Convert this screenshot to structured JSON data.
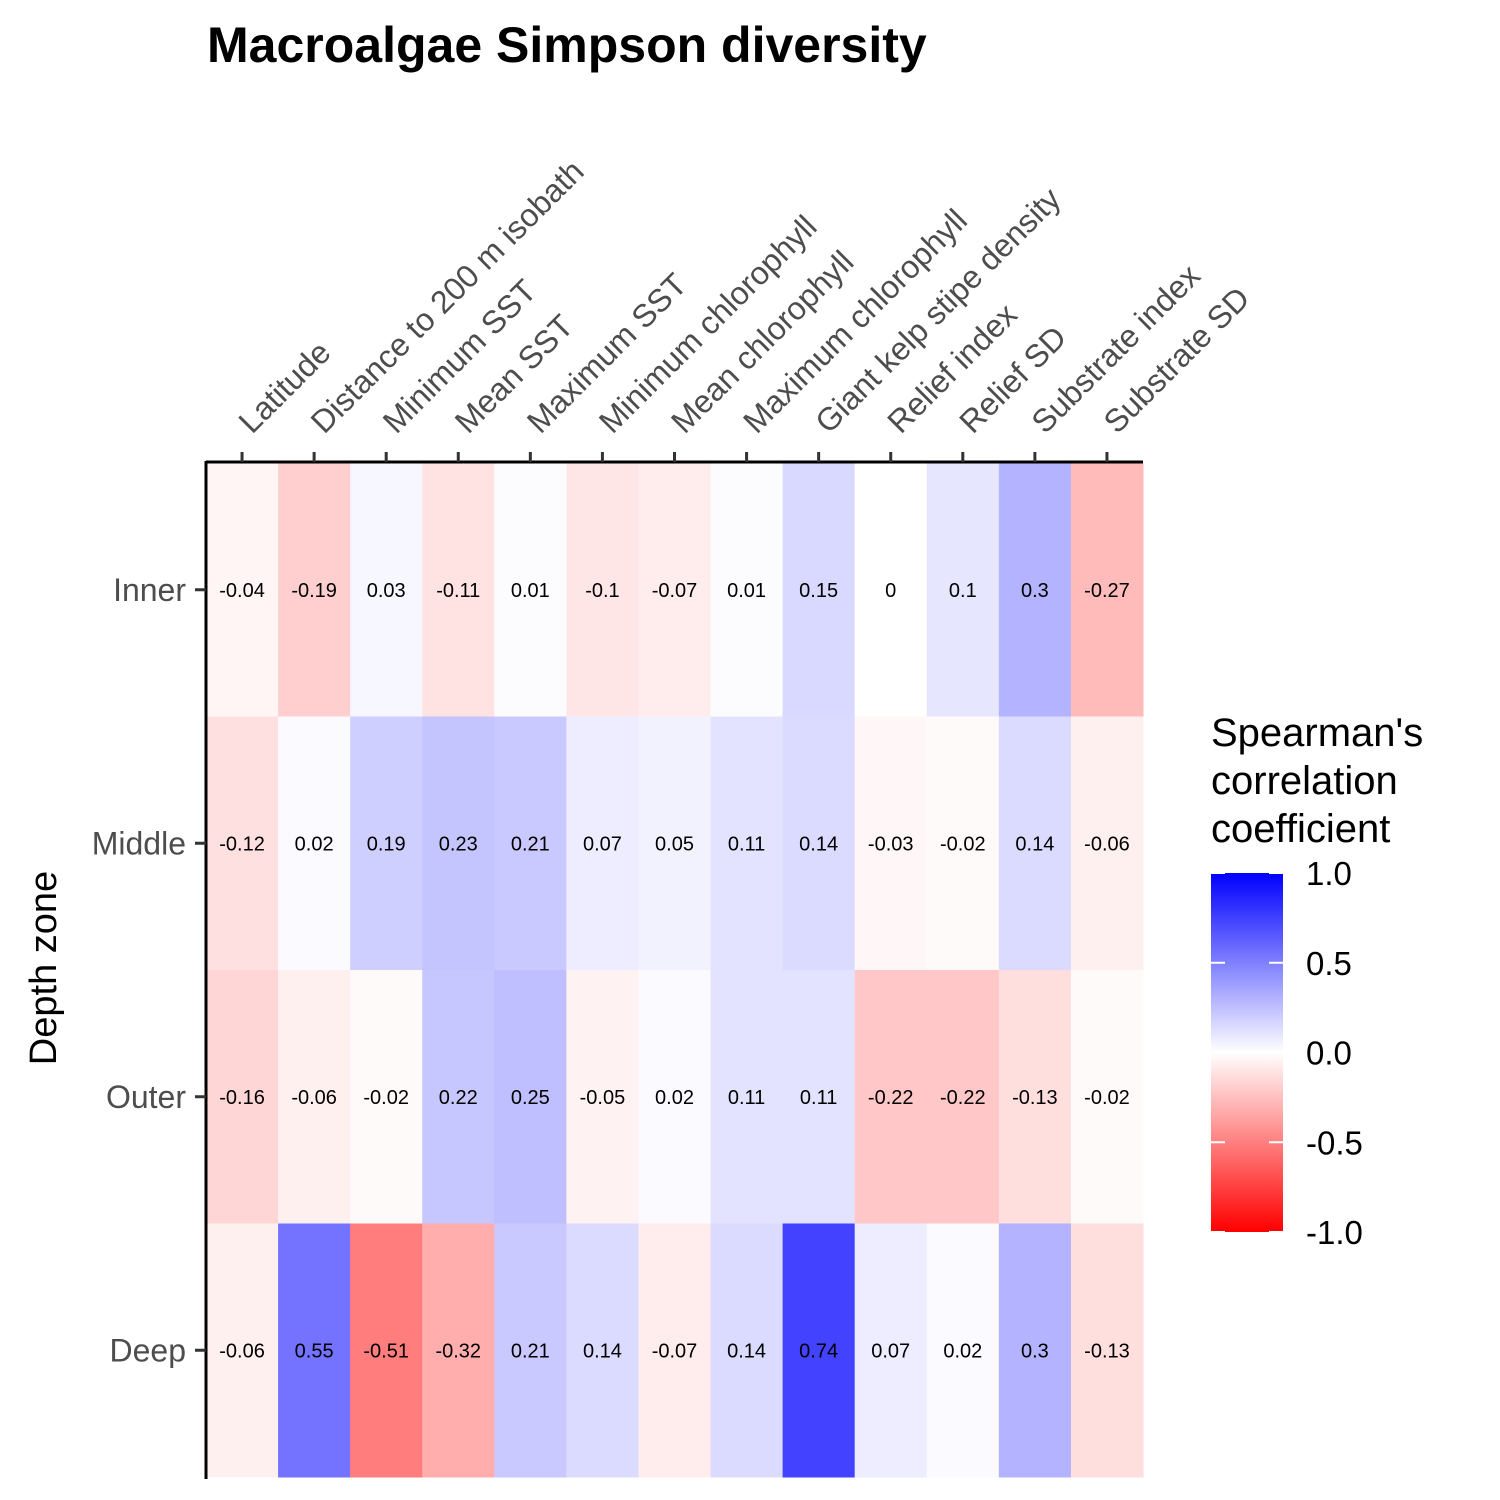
{
  "chart_data": {
    "type": "heatmap",
    "title": "Macroalgae  Simpson diversity",
    "ylabel": "Depth zone",
    "xlabel": "",
    "columns": [
      "Latitude",
      "Distance to 200 m isobath",
      "Minimum SST",
      "Mean SST",
      "Maximum SST",
      "Minimum chlorophyll",
      "Mean chlorophyll",
      "Maximum chlorophyll",
      "Giant kelp stipe density",
      "Relief index",
      "Relief SD",
      "Substrate index",
      "Substrate SD"
    ],
    "rows": [
      "Inner",
      "Middle",
      "Outer",
      "Deep"
    ],
    "values": [
      [
        -0.04,
        -0.19,
        0.03,
        -0.11,
        0.01,
        -0.1,
        -0.07,
        0.01,
        0.15,
        0,
        0.1,
        0.3,
        -0.27
      ],
      [
        -0.12,
        0.02,
        0.19,
        0.23,
        0.21,
        0.07,
        0.05,
        0.11,
        0.14,
        -0.03,
        -0.02,
        0.14,
        -0.06
      ],
      [
        -0.16,
        -0.06,
        -0.02,
        0.22,
        0.25,
        -0.05,
        0.02,
        0.11,
        0.11,
        -0.22,
        -0.22,
        -0.13,
        -0.02
      ],
      [
        -0.06,
        0.55,
        -0.51,
        -0.32,
        0.21,
        0.14,
        -0.07,
        0.14,
        0.74,
        0.07,
        0.02,
        0.3,
        -0.13
      ]
    ],
    "color_scale": {
      "low": "#ff0000",
      "mid": "#ffffff",
      "high": "#0000ff",
      "limits": [
        -1.0,
        1.0
      ]
    },
    "legend": {
      "title_lines": [
        "Spearman's",
        "correlation",
        "coefficient"
      ],
      "ticks": [
        "1.0",
        "0.5",
        "0.0",
        "-0.5",
        "-1.0"
      ],
      "tick_values": [
        1.0,
        0.5,
        0.0,
        -0.5,
        -1.0
      ],
      "placement": "right"
    },
    "grid": false
  }
}
